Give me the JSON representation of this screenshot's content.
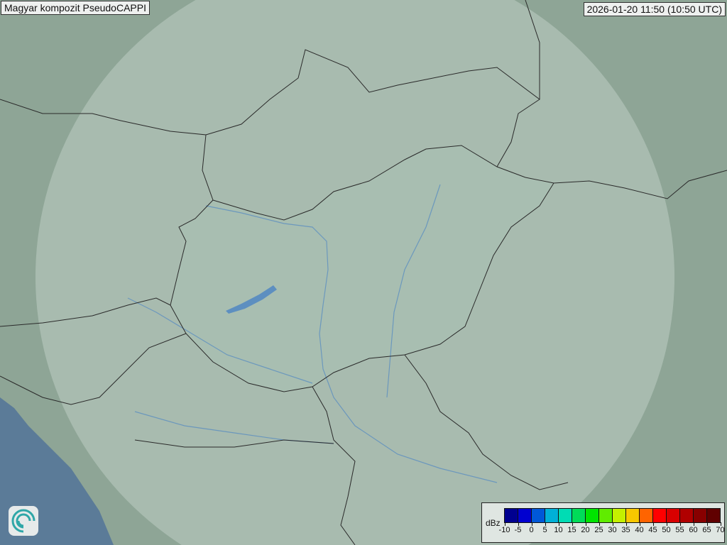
{
  "title": "Magyar kompozit  PseudoCAPPI",
  "timestamp": "2026-01-20 11:50 (10:50 UTC)",
  "legend": {
    "unit": "dBz",
    "ticks": [
      "-10",
      "-5",
      "0",
      "5",
      "10",
      "15",
      "20",
      "25",
      "30",
      "35",
      "40",
      "45",
      "50",
      "55",
      "60",
      "65",
      "70"
    ],
    "colors": [
      "#000090",
      "#0000d0",
      "#0058d8",
      "#00b0d8",
      "#00dcb4",
      "#00dc58",
      "#00e400",
      "#60ec00",
      "#c4f000",
      "#f8c800",
      "#ff6400",
      "#ff0000",
      "#d80000",
      "#b00000",
      "#880000",
      "#600000"
    ]
  },
  "map": {
    "terrain_color": "#8ea596",
    "coverage_color": "#c8d8ce",
    "sea_color": "#5b7b98",
    "border_color": "#2a2a2a",
    "river_color": "#5d8fc0"
  },
  "logo_icon": "swirl-logo-icon"
}
